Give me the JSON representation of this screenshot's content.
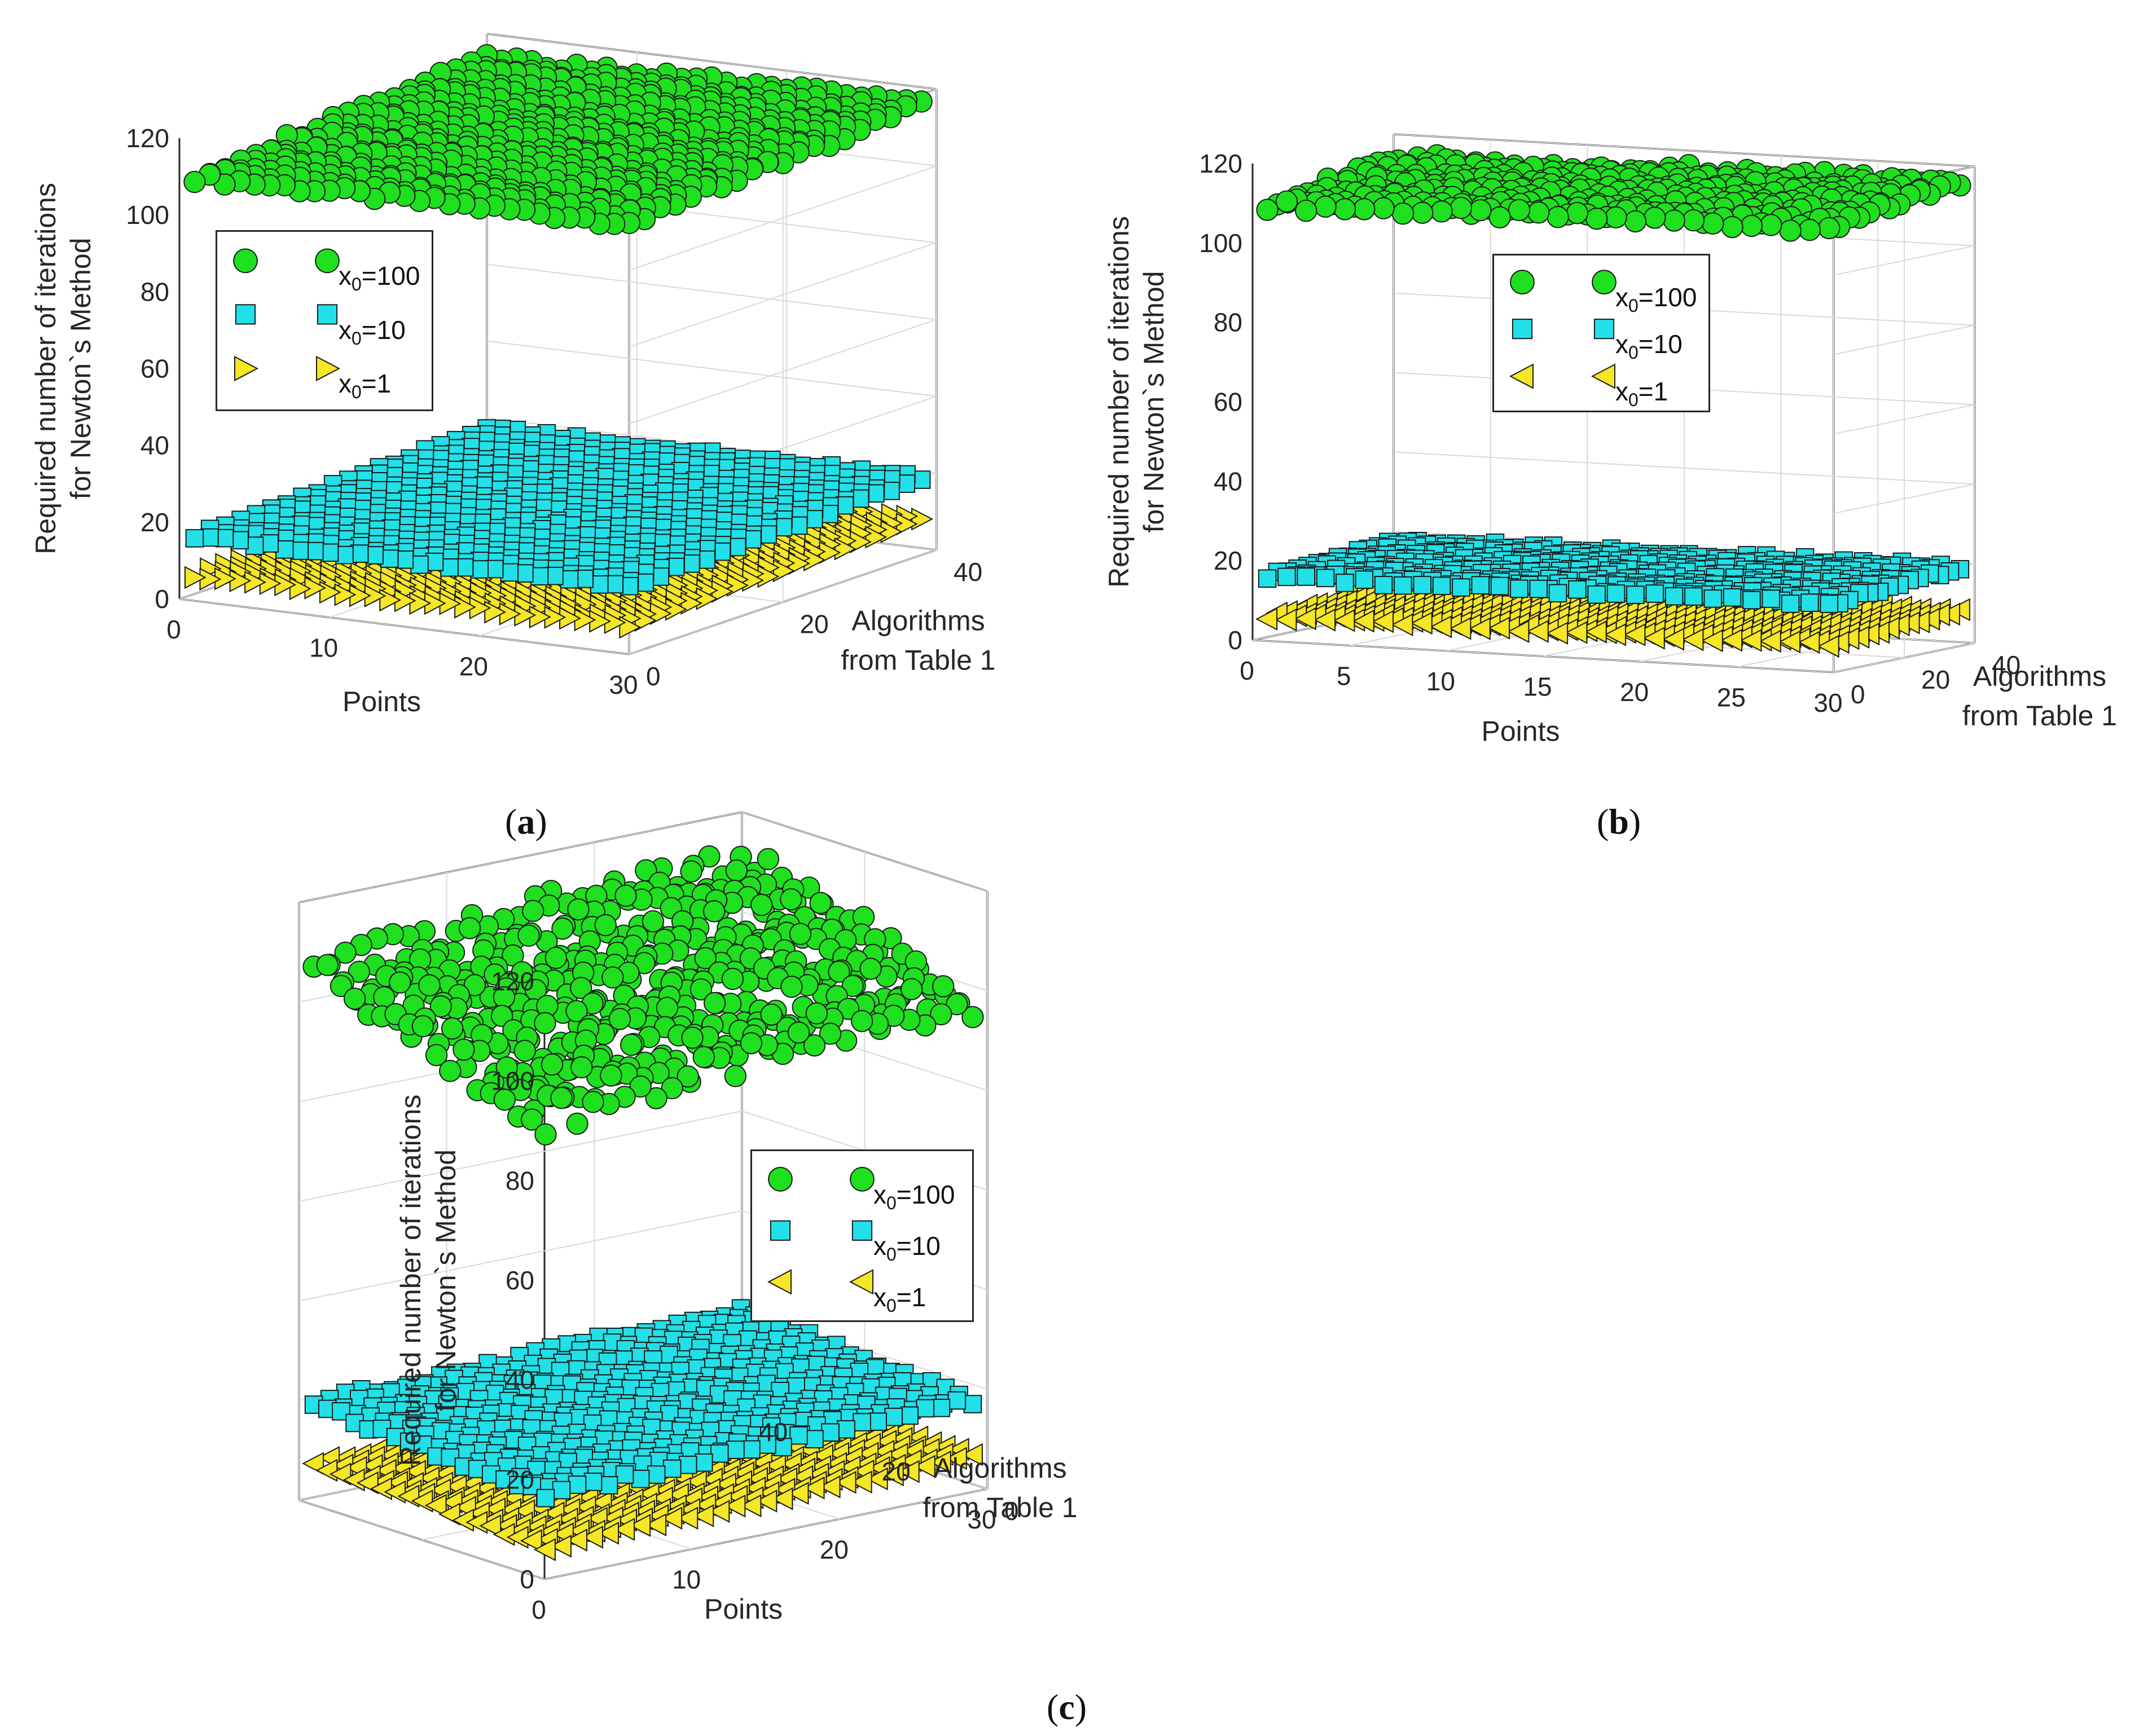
{
  "figure": {
    "colors": {
      "green": "#1fe01f",
      "cyan": "#22e0e8",
      "yellow": "#f5e626",
      "edge": "#1a1a1a",
      "marker_edge_blue": "#2a6fb5",
      "grid": "#d9d9d9"
    }
  },
  "chart_data": [
    {
      "id": "a",
      "type": "scatter3d",
      "caption_letter": "a",
      "zlabel_line1": "Required number of iterations",
      "zlabel_line2": "for Newton`s Method",
      "xlabel": "Points",
      "ylabel_line1": "Algorithms",
      "ylabel_line2": "from Table 1",
      "x_range": [
        0,
        30
      ],
      "y_range": [
        0,
        40
      ],
      "z_range": [
        0,
        120
      ],
      "x_ticks": [
        "0",
        "10",
        "20",
        "30"
      ],
      "y_ticks": [
        "0",
        "20",
        "40"
      ],
      "z_ticks": [
        "0",
        "20",
        "40",
        "60",
        "80",
        "100",
        "120"
      ],
      "series": [
        {
          "name": "x0=100",
          "label_base": "x",
          "label_sub": "0",
          "label_rest": "=100",
          "marker": "circle",
          "color": "green",
          "level_range": [
            108,
            118
          ]
        },
        {
          "name": "x0=10",
          "label_base": "x",
          "label_sub": "0",
          "label_rest": "=10",
          "marker": "square",
          "color": "cyan",
          "level_range": [
            15,
            20
          ]
        },
        {
          "name": "x0=1",
          "label_base": "x",
          "label_sub": "0",
          "label_rest": "=1",
          "marker": "triangle-right",
          "color": "yellow",
          "level_range": [
            5,
            9
          ]
        }
      ]
    },
    {
      "id": "b",
      "type": "scatter3d",
      "caption_letter": "b",
      "zlabel_line1": "Required number of iterations",
      "zlabel_line2": "for Newton`s Method",
      "xlabel": "Points",
      "ylabel_line1": "Algorithms",
      "ylabel_line2": "from Table 1",
      "x_range": [
        0,
        30
      ],
      "y_range": [
        0,
        40
      ],
      "z_range": [
        0,
        120
      ],
      "x_ticks": [
        "0",
        "5",
        "10",
        "15",
        "20",
        "25",
        "30"
      ],
      "y_ticks": [
        "0",
        "20",
        "40"
      ],
      "z_ticks": [
        "0",
        "20",
        "40",
        "60",
        "80",
        "100",
        "120"
      ],
      "series": [
        {
          "name": "x0=100",
          "label_base": "x",
          "label_sub": "0",
          "label_rest": "=100",
          "marker": "circle",
          "color": "green",
          "level_range": [
            108,
            118
          ]
        },
        {
          "name": "x0=10",
          "label_base": "x",
          "label_sub": "0",
          "label_rest": "=10",
          "marker": "square",
          "color": "cyan",
          "level_range": [
            15,
            20
          ]
        },
        {
          "name": "x0=1",
          "label_base": "x",
          "label_sub": "0",
          "label_rest": "=1",
          "marker": "triangle-left",
          "color": "yellow",
          "level_range": [
            5,
            9
          ]
        }
      ]
    },
    {
      "id": "c",
      "type": "scatter3d",
      "caption_letter": "c",
      "zlabel_line1": "Required number of iterations",
      "zlabel_line2": "for Newton`s Method",
      "xlabel": "Points",
      "ylabel_line1": "Algorithms",
      "ylabel_line2": "from Table 1",
      "x_range": [
        0,
        30
      ],
      "y_range": [
        0,
        40
      ],
      "z_range": [
        0,
        120
      ],
      "x_ticks": [
        "0",
        "10",
        "20",
        "30"
      ],
      "y_ticks": [
        "0",
        "20",
        "40"
      ],
      "z_ticks": [
        "0",
        "20",
        "40",
        "60",
        "80",
        "100",
        "120"
      ],
      "series": [
        {
          "name": "x0=100",
          "label_base": "x",
          "label_sub": "0",
          "label_rest": "=100",
          "marker": "circle",
          "color": "green",
          "level_range": [
            88,
            116
          ]
        },
        {
          "name": "x0=10",
          "label_base": "x",
          "label_sub": "0",
          "label_rest": "=10",
          "marker": "square",
          "color": "cyan",
          "level_range": [
            15,
            22
          ]
        },
        {
          "name": "x0=1",
          "label_base": "x",
          "label_sub": "0",
          "label_rest": "=1",
          "marker": "triangle-left",
          "color": "yellow",
          "level_range": [
            5,
            9
          ]
        }
      ]
    }
  ]
}
